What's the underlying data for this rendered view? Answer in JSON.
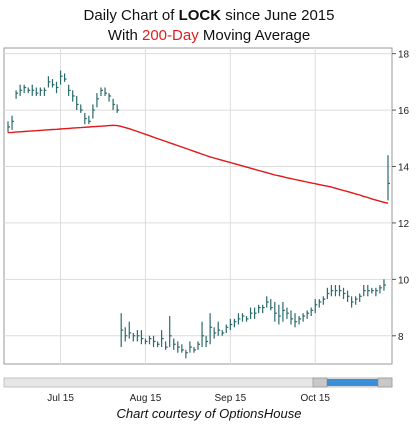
{
  "title_parts": {
    "line1_prefix": "Daily Chart of ",
    "line1_ticker": "LOCK",
    "line1_suffix": " since June 2015",
    "line2_prefix": "With ",
    "line2_highlight": "200-Day",
    "line2_suffix": " Moving Average"
  },
  "credit": "Chart courtesy of OptionsHouse",
  "colors": {
    "price_bars": "#2a6a6a",
    "moving_average": "#e01818",
    "grid": "#dcdcdc",
    "scrollbar_thumb": "#3b8fd8"
  },
  "chart_data": {
    "type": "line",
    "title": "Daily Chart of LOCK since June 2015 With 200-Day Moving Average",
    "xlabel": "",
    "ylabel": "",
    "ylim": [
      7,
      18.2
    ],
    "yticks": [
      8,
      10,
      12,
      14,
      16,
      18
    ],
    "ytick_labels": [
      "8",
      "10",
      "12",
      "14",
      "16",
      "18"
    ],
    "xtick_labels": [
      "Jul 15",
      "Aug 15",
      "Sep 15",
      "Oct 15"
    ],
    "xtick_positions": [
      13,
      34,
      55,
      76
    ],
    "grid": true,
    "x": [
      0,
      1,
      2,
      3,
      4,
      5,
      6,
      7,
      8,
      9,
      10,
      11,
      12,
      13,
      14,
      15,
      16,
      17,
      18,
      19,
      20,
      21,
      22,
      23,
      24,
      25,
      26,
      27,
      28,
      29,
      30,
      31,
      32,
      33,
      34,
      35,
      36,
      37,
      38,
      39,
      40,
      41,
      42,
      43,
      44,
      45,
      46,
      47,
      48,
      49,
      50,
      51,
      52,
      53,
      54,
      55,
      56,
      57,
      58,
      59,
      60,
      61,
      62,
      63,
      64,
      65,
      66,
      67,
      68,
      69,
      70,
      71,
      72,
      73,
      74,
      75,
      76,
      77,
      78,
      79,
      80,
      81,
      82,
      83,
      84,
      85,
      86,
      87,
      88,
      89,
      90,
      91,
      92,
      93,
      94
    ],
    "series": [
      {
        "kind": "ohlc",
        "high": [
          15.6,
          15.8,
          16.7,
          16.9,
          16.9,
          16.8,
          16.9,
          16.8,
          16.8,
          16.8,
          17.2,
          17.1,
          17.0,
          17.4,
          17.3,
          16.9,
          16.7,
          16.5,
          16.2,
          15.9,
          15.8,
          16.2,
          16.6,
          16.8,
          16.8,
          16.6,
          16.4,
          16.2,
          8.8,
          8.3,
          8.5,
          8.1,
          8.2,
          8.2,
          7.9,
          8.0,
          8.0,
          7.8,
          8.2,
          7.8,
          8.7,
          7.9,
          7.8,
          7.7,
          7.5,
          7.8,
          7.6,
          7.8,
          8.5,
          8.0,
          8.8,
          8.3,
          8.5,
          8.2,
          8.4,
          8.6,
          8.6,
          8.8,
          8.8,
          8.7,
          9.0,
          9.0,
          9.1,
          9.1,
          9.4,
          9.3,
          9.2,
          9.1,
          9.2,
          9.0,
          8.9,
          8.8,
          8.7,
          8.8,
          8.9,
          9.0,
          9.3,
          9.3,
          9.4,
          9.7,
          9.8,
          9.8,
          9.8,
          9.7,
          9.6,
          9.4,
          9.4,
          9.5,
          9.8,
          9.8,
          9.7,
          9.7,
          9.8,
          10.0,
          14.4
        ],
        "low": [
          15.2,
          15.3,
          16.4,
          16.5,
          16.6,
          16.6,
          16.5,
          16.5,
          16.5,
          16.5,
          16.8,
          16.8,
          16.6,
          16.9,
          17.0,
          16.5,
          16.3,
          16.0,
          15.9,
          15.5,
          15.5,
          15.7,
          16.1,
          16.5,
          16.5,
          16.3,
          16.0,
          15.9,
          7.6,
          7.8,
          7.9,
          7.8,
          7.8,
          7.7,
          7.7,
          7.7,
          7.6,
          7.6,
          7.6,
          7.5,
          7.6,
          7.5,
          7.4,
          7.4,
          7.2,
          7.4,
          7.4,
          7.5,
          7.6,
          7.6,
          7.7,
          7.9,
          8.0,
          8.0,
          8.1,
          8.2,
          8.3,
          8.4,
          8.5,
          8.5,
          8.6,
          8.6,
          8.8,
          8.8,
          9.0,
          8.9,
          8.5,
          8.4,
          8.5,
          8.6,
          8.4,
          8.3,
          8.4,
          8.5,
          8.6,
          8.7,
          8.8,
          9.0,
          9.1,
          9.3,
          9.4,
          9.4,
          9.4,
          9.3,
          9.2,
          9.0,
          9.1,
          9.2,
          9.4,
          9.4,
          9.5,
          9.4,
          9.5,
          9.6,
          12.8
        ],
        "close": [
          15.4,
          15.6,
          16.6,
          16.7,
          16.8,
          16.7,
          16.7,
          16.6,
          16.7,
          16.7,
          17.0,
          16.9,
          16.8,
          17.2,
          17.1,
          16.7,
          16.5,
          16.2,
          16.0,
          15.7,
          15.6,
          16.0,
          16.4,
          16.7,
          16.6,
          16.5,
          16.2,
          16.0,
          8.2,
          8.0,
          8.1,
          8.0,
          8.0,
          7.9,
          7.8,
          7.9,
          7.8,
          7.7,
          7.9,
          7.6,
          8.0,
          7.7,
          7.6,
          7.5,
          7.4,
          7.6,
          7.5,
          7.7,
          8.0,
          7.8,
          8.3,
          8.1,
          8.2,
          8.1,
          8.3,
          8.4,
          8.5,
          8.6,
          8.7,
          8.6,
          8.8,
          8.8,
          9.0,
          9.0,
          9.2,
          9.0,
          8.8,
          8.7,
          8.9,
          8.8,
          8.6,
          8.5,
          8.6,
          8.7,
          8.8,
          8.9,
          9.1,
          9.2,
          9.3,
          9.5,
          9.6,
          9.6,
          9.6,
          9.5,
          9.4,
          9.2,
          9.3,
          9.4,
          9.6,
          9.6,
          9.6,
          9.6,
          9.7,
          9.8,
          13.4
        ]
      },
      {
        "kind": "moving_average",
        "values": [
          15.2,
          15.21,
          15.22,
          15.23,
          15.24,
          15.25,
          15.26,
          15.27,
          15.28,
          15.29,
          15.3,
          15.31,
          15.32,
          15.33,
          15.34,
          15.35,
          15.36,
          15.37,
          15.38,
          15.39,
          15.4,
          15.41,
          15.42,
          15.43,
          15.44,
          15.45,
          15.46,
          15.45,
          15.42,
          15.38,
          15.34,
          15.29,
          15.24,
          15.19,
          15.14,
          15.09,
          15.04,
          14.99,
          14.94,
          14.89,
          14.84,
          14.79,
          14.74,
          14.69,
          14.64,
          14.59,
          14.54,
          14.49,
          14.44,
          14.39,
          14.34,
          14.3,
          14.26,
          14.22,
          14.18,
          14.14,
          14.1,
          14.06,
          14.02,
          13.98,
          13.94,
          13.9,
          13.86,
          13.82,
          13.78,
          13.74,
          13.7,
          13.67,
          13.64,
          13.6,
          13.57,
          13.54,
          13.51,
          13.48,
          13.45,
          13.42,
          13.39,
          13.36,
          13.33,
          13.3,
          13.27,
          13.23,
          13.19,
          13.15,
          13.11,
          13.07,
          13.03,
          12.99,
          12.94,
          12.9,
          12.85,
          12.81,
          12.77,
          12.73,
          12.7
        ]
      }
    ]
  }
}
